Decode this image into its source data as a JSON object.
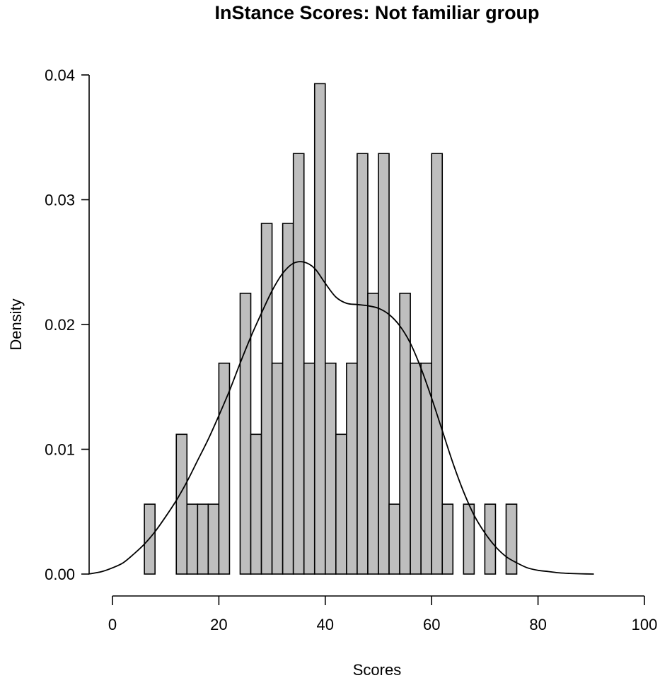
{
  "chart_data": {
    "type": "bar",
    "title": "InStance Scores: Not familiar group",
    "xlabel": "Scores",
    "ylabel": "Density",
    "xlim": [
      0,
      100
    ],
    "ylim": [
      0,
      0.04
    ],
    "x_ticks": [
      "0",
      "20",
      "40",
      "60",
      "80",
      "100"
    ],
    "y_ticks": [
      "0.00",
      "0.01",
      "0.02",
      "0.03",
      "0.04"
    ],
    "bin_width": 2,
    "histogram": {
      "name": "",
      "color": "#bebebe",
      "bins": [
        {
          "start": 6,
          "end": 8,
          "density": 0.0056
        },
        {
          "start": 8,
          "end": 10,
          "density": 0
        },
        {
          "start": 10,
          "end": 12,
          "density": 0
        },
        {
          "start": 12,
          "end": 14,
          "density": 0.0112
        },
        {
          "start": 14,
          "end": 16,
          "density": 0.0056
        },
        {
          "start": 16,
          "end": 18,
          "density": 0.0056
        },
        {
          "start": 18,
          "end": 20,
          "density": 0.0056
        },
        {
          "start": 20,
          "end": 22,
          "density": 0.0169
        },
        {
          "start": 22,
          "end": 24,
          "density": 0
        },
        {
          "start": 24,
          "end": 26,
          "density": 0.0225
        },
        {
          "start": 26,
          "end": 28,
          "density": 0.0112
        },
        {
          "start": 28,
          "end": 30,
          "density": 0.0281
        },
        {
          "start": 30,
          "end": 32,
          "density": 0.0169
        },
        {
          "start": 32,
          "end": 34,
          "density": 0.0281
        },
        {
          "start": 34,
          "end": 36,
          "density": 0.0337
        },
        {
          "start": 36,
          "end": 38,
          "density": 0.0169
        },
        {
          "start": 38,
          "end": 40,
          "density": 0.0393
        },
        {
          "start": 40,
          "end": 42,
          "density": 0.0169
        },
        {
          "start": 42,
          "end": 44,
          "density": 0.0112
        },
        {
          "start": 44,
          "end": 46,
          "density": 0.0169
        },
        {
          "start": 46,
          "end": 48,
          "density": 0.0337
        },
        {
          "start": 48,
          "end": 50,
          "density": 0.0225
        },
        {
          "start": 50,
          "end": 52,
          "density": 0.0337
        },
        {
          "start": 52,
          "end": 54,
          "density": 0.0056
        },
        {
          "start": 54,
          "end": 56,
          "density": 0.0225
        },
        {
          "start": 56,
          "end": 58,
          "density": 0.0169
        },
        {
          "start": 58,
          "end": 60,
          "density": 0.0169
        },
        {
          "start": 60,
          "end": 62,
          "density": 0.0337
        },
        {
          "start": 62,
          "end": 64,
          "density": 0.0056
        },
        {
          "start": 64,
          "end": 66,
          "density": 0
        },
        {
          "start": 66,
          "end": 68,
          "density": 0.0056
        },
        {
          "start": 68,
          "end": 70,
          "density": 0
        },
        {
          "start": 70,
          "end": 72,
          "density": 0.0056
        },
        {
          "start": 72,
          "end": 74,
          "density": 0
        },
        {
          "start": 74,
          "end": 76,
          "density": 0.0056
        }
      ]
    },
    "density_curve": {
      "name": "",
      "color": "#000000",
      "x": [
        -4.5,
        -2,
        0,
        2,
        4,
        6,
        8,
        10,
        12,
        14,
        16,
        18,
        20,
        22,
        24,
        26,
        28,
        30,
        32,
        34,
        36,
        38,
        40,
        42,
        44,
        46,
        48,
        50,
        52,
        54,
        56,
        58,
        60,
        62,
        64,
        66,
        68,
        70,
        72,
        74,
        76,
        78,
        80,
        82,
        84,
        86,
        88,
        90.5
      ],
      "y": [
        0,
        0.0002,
        0.0005,
        0.0009,
        0.0016,
        0.0024,
        0.0034,
        0.0046,
        0.0059,
        0.0074,
        0.0091,
        0.0108,
        0.0127,
        0.0147,
        0.0169,
        0.019,
        0.0209,
        0.0227,
        0.0241,
        0.0249,
        0.025,
        0.0245,
        0.0233,
        0.0222,
        0.0217,
        0.0216,
        0.0215,
        0.0213,
        0.0208,
        0.0199,
        0.0185,
        0.0165,
        0.0141,
        0.0115,
        0.0089,
        0.0066,
        0.0047,
        0.0033,
        0.0022,
        0.0014,
        0.0009,
        0.0005,
        0.0003,
        0.0002,
        0.0001,
        5e-05,
        2e-05,
        0
      ]
    }
  }
}
